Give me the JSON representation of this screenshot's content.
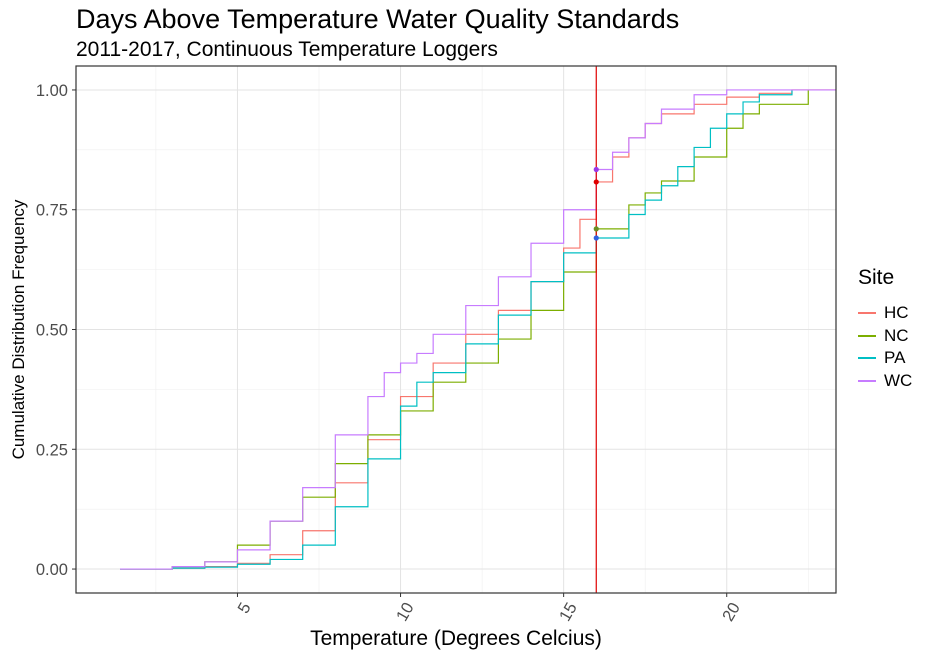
{
  "chart_data": {
    "type": "line",
    "title": "Days Above Temperature Water Quality Standards",
    "subtitle": "2011-2017, Continuous Temperature Loggers",
    "xlabel": "Temperature (Degrees Celcius)",
    "ylabel": "Cumulative Distribution Frequency",
    "xlim": [
      0.05,
      23.35
    ],
    "ylim": [
      -0.05,
      1.05
    ],
    "x_ticks": [
      5,
      10,
      15,
      20
    ],
    "y_ticks": [
      0.0,
      0.25,
      0.5,
      0.75,
      1.0
    ],
    "y_tick_labels": [
      "0.00",
      "0.25",
      "0.50",
      "0.75",
      "1.00"
    ],
    "grid": true,
    "legend_title": "Site",
    "legend_position": "right",
    "reference_line": {
      "x": 16.0,
      "color": "#e00000"
    },
    "highlight_points": [
      {
        "series": "WC",
        "x": 16.0,
        "y": 0.834,
        "color": "#9a38e6"
      },
      {
        "series": "HC",
        "x": 16.0,
        "y": 0.808,
        "color": "#e00000"
      },
      {
        "series": "NC",
        "x": 16.0,
        "y": 0.71,
        "color": "#6b8e23"
      },
      {
        "series": "PA",
        "x": 16.0,
        "y": 0.691,
        "color": "#3060e0"
      }
    ],
    "series": [
      {
        "name": "HC",
        "color": "#F8766D",
        "x": [
          1.4,
          3,
          4,
          5,
          6,
          7,
          8,
          9,
          10,
          11,
          12,
          13,
          14,
          15,
          15.5,
          16,
          16.5,
          17,
          17.5,
          18,
          19,
          20,
          21,
          22,
          23.35
        ],
        "y": [
          0,
          0.002,
          0.005,
          0.012,
          0.03,
          0.08,
          0.18,
          0.27,
          0.36,
          0.43,
          0.49,
          0.54,
          0.6,
          0.67,
          0.73,
          0.808,
          0.86,
          0.9,
          0.93,
          0.95,
          0.97,
          0.985,
          0.993,
          1.0,
          1.0
        ]
      },
      {
        "name": "NC",
        "color": "#7CAE00",
        "x": [
          1.4,
          3,
          4,
          5,
          6,
          7,
          8,
          9,
          10,
          11,
          12,
          13,
          14,
          15,
          16,
          17,
          17.5,
          18,
          19,
          20,
          20.5,
          21,
          22.5
        ],
        "y": [
          0,
          0.005,
          0.015,
          0.05,
          0.1,
          0.15,
          0.22,
          0.28,
          0.33,
          0.39,
          0.43,
          0.48,
          0.54,
          0.62,
          0.71,
          0.76,
          0.785,
          0.81,
          0.86,
          0.92,
          0.95,
          0.97,
          1.0
        ]
      },
      {
        "name": "PA",
        "color": "#00BFC4",
        "x": [
          1.4,
          3,
          4,
          5,
          6,
          7,
          8,
          9,
          10,
          10.5,
          11,
          12,
          13,
          14,
          15,
          16,
          17,
          17.5,
          18,
          18.5,
          19,
          19.5,
          20,
          20.5,
          21,
          22
        ],
        "y": [
          0,
          0.002,
          0.004,
          0.01,
          0.02,
          0.05,
          0.13,
          0.23,
          0.34,
          0.39,
          0.41,
          0.47,
          0.53,
          0.6,
          0.66,
          0.691,
          0.74,
          0.77,
          0.8,
          0.84,
          0.88,
          0.92,
          0.95,
          0.975,
          0.99,
          1.0
        ]
      },
      {
        "name": "WC",
        "color": "#C77CFF",
        "x": [
          1.4,
          3,
          4,
          5,
          6,
          7,
          8,
          9,
          9.5,
          10,
          10.5,
          11,
          12,
          13,
          14,
          15,
          16,
          16.5,
          17,
          17.5,
          18,
          19,
          20,
          23.35
        ],
        "y": [
          0,
          0.005,
          0.015,
          0.04,
          0.1,
          0.17,
          0.28,
          0.36,
          0.41,
          0.43,
          0.45,
          0.49,
          0.55,
          0.61,
          0.68,
          0.75,
          0.834,
          0.87,
          0.9,
          0.93,
          0.96,
          0.99,
          1.0,
          1.0
        ]
      }
    ]
  }
}
